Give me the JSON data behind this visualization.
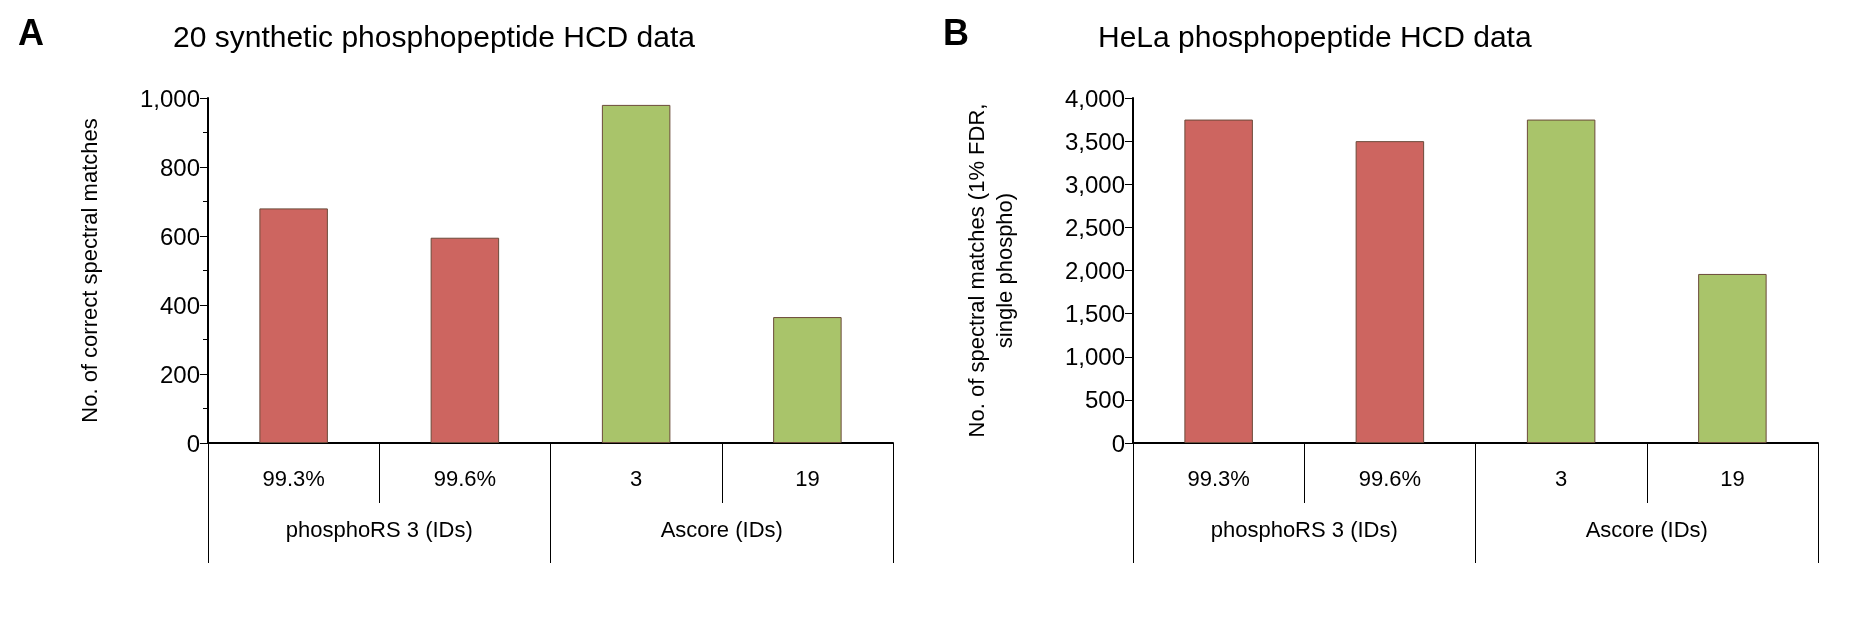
{
  "chart_data": [
    {
      "type": "bar",
      "title": "20 synthetic phosphopeptide HCD data",
      "ylabel": "No. of correct spectral matches",
      "categories": [
        "99.3%",
        "99.6%",
        "3",
        "19"
      ],
      "values": [
        680,
        595,
        980,
        365
      ],
      "colors": [
        "#cd6560",
        "#cd6560",
        "#a9c46a",
        "#a9c46a"
      ],
      "ylim": [
        0,
        1000
      ],
      "yticks": [
        0,
        200,
        400,
        600,
        800,
        {
          "value": 1000,
          "label": "1,000"
        }
      ],
      "grid": false,
      "annotations": [
        "A",
        "phosphoRS 3 (IDs)",
        "Ascore (IDs)"
      ]
    },
    {
      "type": "bar",
      "title": "HeLa phosphopeptide HCD data",
      "ylabel": "No. of spectral matches (1% FDR, single phospho)",
      "categories": [
        "99.3%",
        "99.6%",
        "3",
        "19"
      ],
      "values": [
        3750,
        3500,
        3750,
        1960
      ],
      "colors": [
        "#cd6560",
        "#cd6560",
        "#a9c46a",
        "#a9c46a"
      ],
      "ylim": [
        0,
        4000
      ],
      "yticks": [
        0,
        500,
        {
          "value": 1000,
          "label": "1,000"
        },
        {
          "value": 1500,
          "label": "1,500"
        },
        {
          "value": 2000,
          "label": "2,000"
        },
        {
          "value": 2500,
          "label": "2,500"
        },
        {
          "value": 3000,
          "label": "3,000"
        },
        {
          "value": 3500,
          "label": "3,500"
        },
        {
          "value": 4000,
          "label": "4,000"
        }
      ],
      "grid": false,
      "annotations": [
        "B",
        "phosphoRS 3 (IDs)",
        "Ascore (IDs)"
      ]
    }
  ]
}
